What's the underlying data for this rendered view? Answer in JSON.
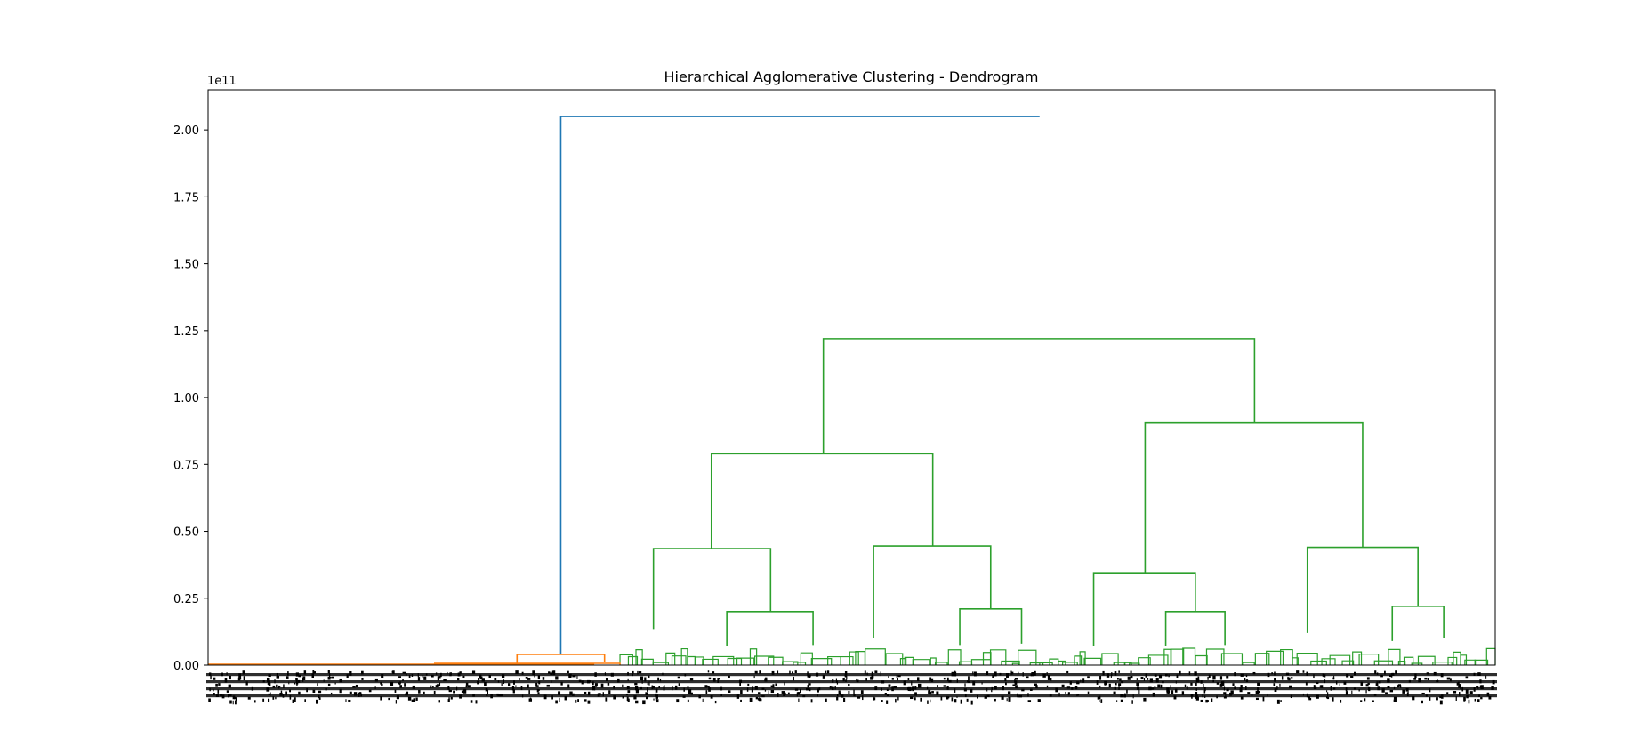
{
  "chart_data": {
    "type": "dendrogram",
    "title": "Hierarchical Agglomerative Clustering - Dendrogram",
    "xlabel": "",
    "ylabel": "",
    "y_offset_text": "1e11",
    "y_scale": 100000000000,
    "ylim": [
      0,
      2.15
    ],
    "xlim": [
      0,
      1
    ],
    "y_ticks": [
      0.0,
      0.25,
      0.5,
      0.75,
      1.0,
      1.25,
      1.5,
      1.75,
      2.0
    ],
    "y_tick_labels": [
      "0.00",
      "0.25",
      "0.50",
      "0.75",
      "1.00",
      "1.25",
      "1.50",
      "1.75",
      "2.00"
    ],
    "grid": false,
    "leaf_labels_legible": false,
    "colors": {
      "root": "#1f77b4",
      "cluster_1": "#ff7f0e",
      "cluster_2": "#2ca02c"
    },
    "links": [
      {
        "cluster": "root",
        "x": [
          0.274,
          0.646
        ],
        "y": [
          0.04,
          2.05
        ],
        "merge_y": 2.05
      },
      {
        "cluster": "cluster_2",
        "x": [
          0.478,
          0.813
        ],
        "y": [
          0.79,
          0.905
        ],
        "merge_y": 1.22
      },
      {
        "cluster": "cluster_2",
        "x": [
          0.391,
          0.563
        ],
        "y": [
          0.435,
          0.445
        ],
        "merge_y": 0.79
      },
      {
        "cluster": "cluster_2",
        "x": [
          0.728,
          0.897
        ],
        "y": [
          0.345,
          0.44
        ],
        "merge_y": 0.905
      },
      {
        "cluster": "cluster_2",
        "x": [
          0.346,
          0.437
        ],
        "y": [
          0.135,
          0.2
        ],
        "merge_y": 0.435
      },
      {
        "cluster": "cluster_2",
        "x": [
          0.517,
          0.608
        ],
        "y": [
          0.1,
          0.21
        ],
        "merge_y": 0.445
      },
      {
        "cluster": "cluster_2",
        "x": [
          0.688,
          0.767
        ],
        "y": [
          0.07,
          0.2
        ],
        "merge_y": 0.345
      },
      {
        "cluster": "cluster_2",
        "x": [
          0.854,
          0.94
        ],
        "y": [
          0.12,
          0.22
        ],
        "merge_y": 0.44
      },
      {
        "cluster": "cluster_2",
        "x": [
          0.403,
          0.47
        ],
        "y": [
          0.07,
          0.075
        ],
        "merge_y": 0.2
      },
      {
        "cluster": "cluster_2",
        "x": [
          0.584,
          0.632
        ],
        "y": [
          0.075,
          0.08
        ],
        "merge_y": 0.21
      },
      {
        "cluster": "cluster_2",
        "x": [
          0.744,
          0.79
        ],
        "y": [
          0.07,
          0.075
        ],
        "merge_y": 0.2
      },
      {
        "cluster": "cluster_2",
        "x": [
          0.92,
          0.96
        ],
        "y": [
          0.09,
          0.1
        ],
        "merge_y": 0.22
      },
      {
        "cluster": "cluster_1",
        "x": [
          0.24,
          0.308
        ],
        "y": [
          0.005,
          0.01
        ],
        "merge_y": 0.04
      }
    ]
  }
}
